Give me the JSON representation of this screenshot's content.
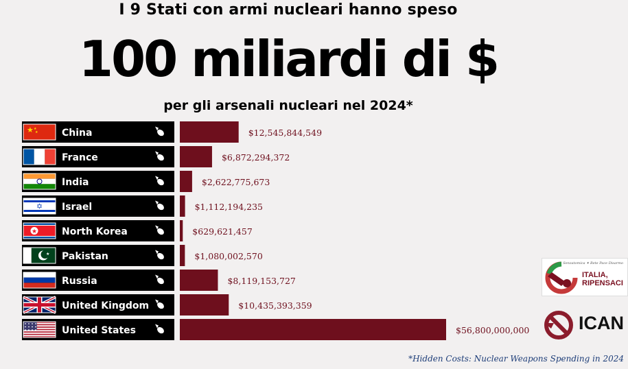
{
  "header": {
    "line1": "I 9 Stati con armi nucleari hanno speso",
    "line2": "100 miliardi di $",
    "line3": "per gli arsenali nucleari nel 2024*"
  },
  "footnote": "*Hidden Costs: Nuclear Weapons Spending in 2024",
  "logos": {
    "italia_ripensaci": [
      "ITALIA,",
      "RIPENSACI"
    ],
    "ican": "ICAN"
  },
  "colors": {
    "bar": "#6e0f1d",
    "label_bg": "#000000",
    "value_text": "#6e0f1d",
    "background": "#f2f0f0"
  },
  "chart_data": {
    "type": "bar",
    "orientation": "horizontal",
    "categories": [
      "China",
      "France",
      "India",
      "Israel",
      "North Korea",
      "Pakistan",
      "Russia",
      "United Kingdom",
      "United States"
    ],
    "values": [
      12545844549,
      6872294372,
      2622775673,
      1112194235,
      629621457,
      1080002570,
      8119153727,
      10435393359,
      56800000000
    ],
    "value_labels": [
      "$12,545,844,549",
      "$6,872,294,372",
      "$2,622,775,673",
      "$1,112,194,235",
      "$629,621,457",
      "$1,080,002,570",
      "$8,119,153,727",
      "$10,435,393,359",
      "$56,800,000,000"
    ],
    "flags": [
      "china-flag",
      "france-flag",
      "india-flag",
      "israel-flag",
      "north-korea-flag",
      "pakistan-flag",
      "russia-flag",
      "uk-flag",
      "us-flag"
    ],
    "row_icon": "nuclear-bomb-icon"
  }
}
